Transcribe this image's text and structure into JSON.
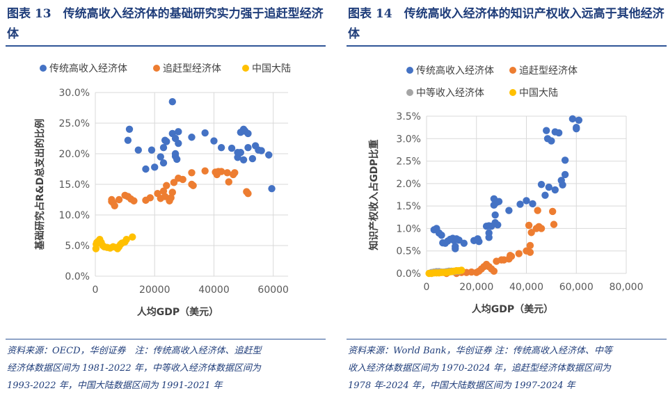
{
  "figures": [
    {
      "title": "图表 13　传统高收入经济体的基础研究实力强于追赶型经济体",
      "note_lines": [
        "资料来源：OECD，华创证券　注：传统高收入经济体、追赶型",
        "经济体数据区间为 1981-2022 年，中等收入经济体数据区间为",
        "1993-2022 年，中国大陆数据区间为 1991-2021 年"
      ]
    },
    {
      "title": "图表 14　传统高收入经济体的知识产权收入远高于其他经济体",
      "note_lines": [
        "资料来源：World Bank，华创证券 注：传统高收入经济体、中等",
        "收入经济体数据区间为 1970-2024 年，追赶型经济体数据区间为",
        "1978 年-2024 年，中国大陆数据区间为 1997-2024 年"
      ]
    }
  ],
  "chart_data": [
    {
      "type": "scatter",
      "xlabel": "人均GDP（美元）",
      "ylabel": "基础研究占R&D总支出的比例",
      "xlim": [
        0,
        65000
      ],
      "ylim": [
        0,
        30
      ],
      "xticks": [
        "0",
        "20000",
        "40000",
        "60000"
      ],
      "xtick_values": [
        0,
        20000,
        40000,
        60000
      ],
      "yticks": [
        "0.0%",
        "5.0%",
        "10.0%",
        "15.0%",
        "20.0%",
        "25.0%",
        "30.0%"
      ],
      "ytick_values": [
        0,
        5,
        10,
        15,
        20,
        25,
        30
      ],
      "grid": true,
      "legend": "top",
      "series": [
        {
          "name": "传统高收入经济体",
          "color": "#4472c4",
          "points": [
            [
              11000,
              22.2
            ],
            [
              11500,
              24
            ],
            [
              11000,
              13
            ],
            [
              14500,
              20.6
            ],
            [
              17000,
              17.5
            ],
            [
              19000,
              20.6
            ],
            [
              20000,
              17.8
            ],
            [
              22000,
              19.5
            ],
            [
              23000,
              21
            ],
            [
              23000,
              18.5
            ],
            [
              23500,
              22.2
            ],
            [
              24000,
              22
            ],
            [
              26000,
              28.5
            ],
            [
              26000,
              23.3
            ],
            [
              27000,
              22.5
            ],
            [
              27000,
              20
            ],
            [
              27000,
              19.6
            ],
            [
              27500,
              19.1
            ],
            [
              28000,
              23.6
            ],
            [
              28000,
              21.7
            ],
            [
              32500,
              22.7
            ],
            [
              37000,
              23.4
            ],
            [
              40000,
              22.1
            ],
            [
              42500,
              21
            ],
            [
              46000,
              20.9
            ],
            [
              48000,
              20.2
            ],
            [
              48000,
              19.4
            ],
            [
              49000,
              23.5
            ],
            [
              49000,
              20.2
            ],
            [
              50000,
              24
            ],
            [
              50500,
              23.7
            ],
            [
              50000,
              19
            ],
            [
              51500,
              23.3
            ],
            [
              51500,
              21
            ],
            [
              53000,
              19.2
            ],
            [
              54000,
              21.3
            ],
            [
              55000,
              20.6
            ],
            [
              56000,
              20.5
            ],
            [
              58500,
              19.8
            ],
            [
              59500,
              14.3
            ]
          ]
        },
        {
          "name": "追赶型经济体",
          "color": "#ed7d31",
          "points": [
            [
              5500,
              12.2
            ],
            [
              5500,
              12.5
            ],
            [
              6000,
              12
            ],
            [
              6500,
              11.5
            ],
            [
              8000,
              12.5
            ],
            [
              10000,
              13.2
            ],
            [
              11000,
              13
            ],
            [
              12000,
              12.6
            ],
            [
              13000,
              12.3
            ],
            [
              17000,
              12.4
            ],
            [
              18500,
              12.8
            ],
            [
              21000,
              13.5
            ],
            [
              22000,
              12.7
            ],
            [
              23000,
              13.9
            ],
            [
              23500,
              13
            ],
            [
              24000,
              14.8
            ],
            [
              25000,
              12.3
            ],
            [
              25500,
              12.8
            ],
            [
              26000,
              13.7
            ],
            [
              26500,
              15.3
            ],
            [
              28000,
              16
            ],
            [
              29500,
              15.8
            ],
            [
              32500,
              16.9
            ],
            [
              32500,
              15
            ],
            [
              33000,
              14.8
            ],
            [
              37000,
              17.2
            ],
            [
              40500,
              17
            ],
            [
              41000,
              16.6
            ],
            [
              41500,
              17.1
            ],
            [
              42500,
              17.1
            ],
            [
              44500,
              16.9
            ],
            [
              45000,
              15.4
            ],
            [
              46500,
              16.6
            ],
            [
              47000,
              16.9
            ],
            [
              51000,
              13.8
            ],
            [
              51500,
              13.5
            ]
          ]
        },
        {
          "name": "中国大陆",
          "color": "#ffc000",
          "points": [
            [
              200,
              4.5
            ],
            [
              300,
              5.2
            ],
            [
              500,
              5.5
            ],
            [
              1000,
              5.7
            ],
            [
              1500,
              6
            ],
            [
              2000,
              5.5
            ],
            [
              2500,
              5
            ],
            [
              3000,
              4.8
            ],
            [
              4000,
              4.7
            ],
            [
              5000,
              4.6
            ],
            [
              6000,
              4.8
            ],
            [
              7000,
              4.7
            ],
            [
              7500,
              4.5
            ],
            [
              8000,
              4.8
            ],
            [
              8500,
              5.2
            ],
            [
              9000,
              5.4
            ],
            [
              10000,
              5.6
            ],
            [
              10500,
              6
            ],
            [
              12500,
              6.4
            ]
          ]
        }
      ]
    },
    {
      "type": "scatter",
      "xlabel": "人均GDP（美元）",
      "ylabel": "知识产权收入占GDP比重",
      "xlim": [
        0,
        80000
      ],
      "ylim": [
        0,
        3.5
      ],
      "xticks": [
        "0",
        "20,000",
        "40,000",
        "60,000",
        "80,000"
      ],
      "xtick_values": [
        0,
        20000,
        40000,
        60000,
        80000
      ],
      "yticks": [
        "0.0%",
        "0.5%",
        "1.0%",
        "1.5%",
        "2.0%",
        "2.5%",
        "3.0%",
        "3.5%"
      ],
      "ytick_values": [
        0,
        0.5,
        1,
        1.5,
        2,
        2.5,
        3,
        3.5
      ],
      "grid": true,
      "legend": "top",
      "series": [
        {
          "name": "传统高收入经济体",
          "color": "#4472c4",
          "points": [
            [
              3000,
              0.97
            ],
            [
              4000,
              1.0
            ],
            [
              5000,
              0.9
            ],
            [
              6000,
              0.85
            ],
            [
              6500,
              0.68
            ],
            [
              7500,
              0.67
            ],
            [
              8500,
              0.72
            ],
            [
              9500,
              0.76
            ],
            [
              10500,
              0.78
            ],
            [
              11000,
              0.73
            ],
            [
              11500,
              0.6
            ],
            [
              11500,
              0.55
            ],
            [
              12000,
              0.77
            ],
            [
              13000,
              0.74
            ],
            [
              15000,
              0.67
            ],
            [
              19000,
              0.73
            ],
            [
              20500,
              0.77
            ],
            [
              21000,
              0.71
            ],
            [
              24000,
              1.05
            ],
            [
              25000,
              1.06
            ],
            [
              25000,
              0.9
            ],
            [
              25000,
              0.8
            ],
            [
              26000,
              1.05
            ],
            [
              27000,
              1.66
            ],
            [
              27000,
              1.52
            ],
            [
              27500,
              1.3
            ],
            [
              27500,
              1.13
            ],
            [
              28000,
              1.58
            ],
            [
              28500,
              1.08
            ],
            [
              29000,
              1.6
            ],
            [
              33000,
              1.4
            ],
            [
              37500,
              1.54
            ],
            [
              40000,
              1.62
            ],
            [
              42500,
              1.55
            ],
            [
              46000,
              1.98
            ],
            [
              47500,
              1.74
            ],
            [
              48000,
              3.18
            ],
            [
              48500,
              3.0
            ],
            [
              49000,
              1.92
            ],
            [
              50000,
              2.95
            ],
            [
              51500,
              1.86
            ],
            [
              51500,
              3.15
            ],
            [
              53000,
              3.13
            ],
            [
              54000,
              2.07
            ],
            [
              54500,
              1.97
            ],
            [
              55500,
              2.52
            ],
            [
              55500,
              2.2
            ],
            [
              58500,
              3.44
            ],
            [
              60000,
              3.25
            ],
            [
              60000,
              3.22
            ],
            [
              61000,
              3.41
            ]
          ]
        },
        {
          "name": "追赶型经济体",
          "color": "#ed7d31",
          "points": [
            [
              8000,
              0.0
            ],
            [
              12000,
              0.0
            ],
            [
              14000,
              0.02
            ],
            [
              16000,
              0.02
            ],
            [
              18000,
              0.03
            ],
            [
              20000,
              0.02
            ],
            [
              21000,
              0.05
            ],
            [
              22000,
              0.1
            ],
            [
              23000,
              0.15
            ],
            [
              24000,
              0.2
            ],
            [
              25000,
              0.15
            ],
            [
              26000,
              0.1
            ],
            [
              27000,
              0.05
            ],
            [
              28000,
              0.27
            ],
            [
              30000,
              0.3
            ],
            [
              31000,
              0.3
            ],
            [
              33000,
              0.32
            ],
            [
              33500,
              0.4
            ],
            [
              34000,
              0.38
            ],
            [
              37000,
              0.44
            ],
            [
              40000,
              0.5
            ],
            [
              41000,
              1.07
            ],
            [
              41500,
              0.62
            ],
            [
              41500,
              0.47
            ],
            [
              42000,
              0.91
            ],
            [
              44000,
              1.0
            ],
            [
              44500,
              1.4
            ],
            [
              45000,
              1.04
            ],
            [
              46000,
              1.0
            ],
            [
              50500,
              1.38
            ],
            [
              51000,
              1.09
            ]
          ]
        },
        {
          "name": "中等收入经济体",
          "color": "#a5a5a5",
          "points": [
            [
              2000,
              0.02
            ],
            [
              3000,
              0.03
            ],
            [
              4000,
              0.04
            ],
            [
              5000,
              0.04
            ],
            [
              6000,
              0.03
            ],
            [
              7000,
              0.03
            ],
            [
              8000,
              0.04
            ],
            [
              9000,
              0.05
            ],
            [
              10000,
              0.05
            ],
            [
              11000,
              0.04
            ],
            [
              12000,
              0.05
            ],
            [
              13000,
              0.05
            ]
          ]
        },
        {
          "name": "中国大陆",
          "color": "#ffc000",
          "points": [
            [
              1000,
              0.0
            ],
            [
              2000,
              0.0
            ],
            [
              3000,
              0.01
            ],
            [
              4000,
              0.01
            ],
            [
              5000,
              0.01
            ],
            [
              6000,
              0.02
            ],
            [
              7000,
              0.02
            ],
            [
              8000,
              0.02
            ],
            [
              9000,
              0.03
            ],
            [
              10000,
              0.04
            ],
            [
              11000,
              0.05
            ],
            [
              12000,
              0.06
            ],
            [
              13000,
              0.06
            ],
            [
              14000,
              0.07
            ]
          ]
        }
      ]
    }
  ]
}
